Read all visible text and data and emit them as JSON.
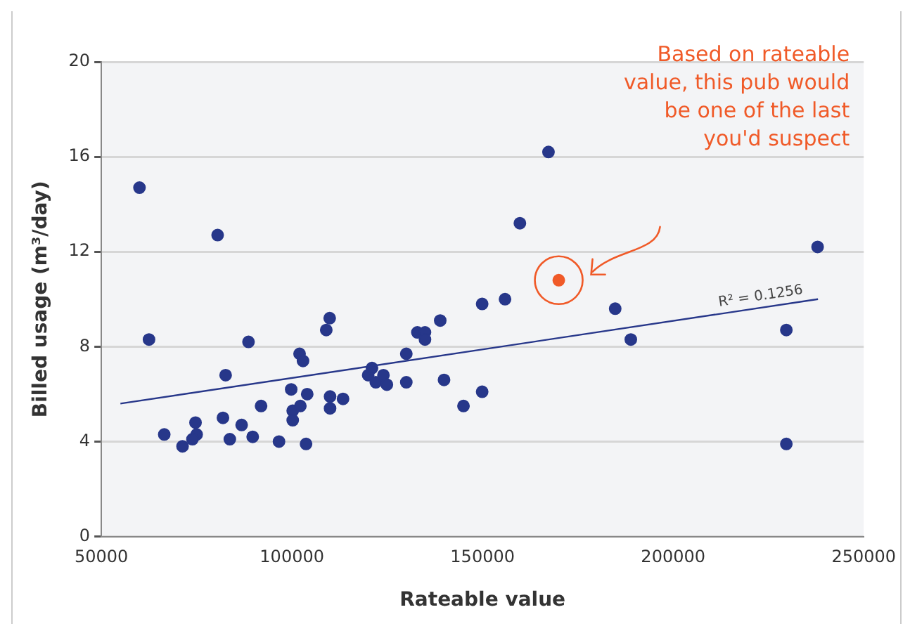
{
  "chart_data": {
    "type": "scatter",
    "xlabel": "Rateable value",
    "ylabel": "Billed usage (m³/day)",
    "xlim": [
      50000,
      250000
    ],
    "xticks": [
      50000,
      100000,
      150000,
      200000,
      250000
    ],
    "ylim": [
      0,
      20
    ],
    "yticks": [
      0,
      4,
      8,
      12,
      16,
      20
    ],
    "grid": "y",
    "legend": false,
    "marker": "circle",
    "series": [
      {
        "color": "#27378a",
        "x": [
          60000,
          80500,
          62500,
          88600,
          82600,
          99800,
          104000,
          102000,
          102900,
          109000,
          109900,
          110000,
          110000,
          113400,
          91900,
          100200,
          102200,
          100200,
          81900,
          86800,
          74700,
          75000,
          66500,
          73900,
          83700,
          89700,
          71300,
          96600,
          103700,
          120000,
          121000,
          122000,
          124000,
          124900,
          130000,
          130000,
          132900,
          134900,
          134900,
          138900,
          139900,
          145000,
          149900,
          149900,
          155900,
          159800,
          167300,
          184800,
          188900,
          237900,
          229700,
          229700
        ],
        "values": [
          14.7,
          12.7,
          8.3,
          8.2,
          6.8,
          6.2,
          6.0,
          7.7,
          7.4,
          8.7,
          9.2,
          5.9,
          5.4,
          5.8,
          5.5,
          5.3,
          5.5,
          4.9,
          5.0,
          4.7,
          4.8,
          4.3,
          4.3,
          4.1,
          4.1,
          4.2,
          3.8,
          4.0,
          3.9,
          6.8,
          7.1,
          6.5,
          6.8,
          6.4,
          7.7,
          6.5,
          8.6,
          8.6,
          8.3,
          9.1,
          6.6,
          5.5,
          6.1,
          9.8,
          10.0,
          13.2,
          16.2,
          9.6,
          8.3,
          12.2,
          8.7,
          3.9
        ]
      },
      {
        "color": "#f05a28",
        "x": [
          170000
        ],
        "values": [
          10.8
        ]
      },
      {
        "type": "line",
        "color": "#27378a",
        "marker": "none",
        "line_style": "solid",
        "x": [
          55000,
          238000
        ],
        "values": [
          5.6,
          10.0
        ]
      }
    ],
    "annotations": [
      "Based on rateable value, this pub would be one of the last you'd suspect",
      "R² = 0.1256"
    ]
  }
}
